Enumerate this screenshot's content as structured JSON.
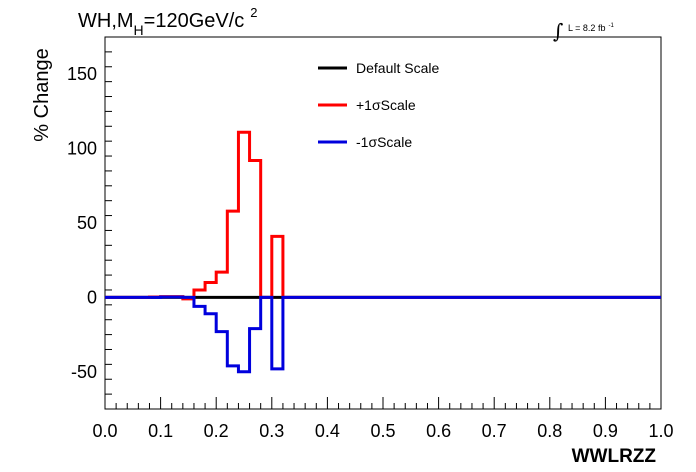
{
  "chart_data": {
    "type": "line",
    "style": "step-histogram",
    "title": {
      "prefix": "WH,M",
      "subscript": "H",
      "suffix": "=120GeV/c",
      "superscript": "2"
    },
    "luminosity": {
      "text": "L = 8.2 fb",
      "superscript": "-1"
    },
    "xlabel": "WWLRZZ",
    "ylabel": "% Change",
    "xlim": [
      0.0,
      1.0
    ],
    "ylim": [
      -75,
      175
    ],
    "xticks": [
      0.0,
      0.1,
      0.2,
      0.3,
      0.4,
      0.5,
      0.6,
      0.7,
      0.8,
      0.9,
      1.0
    ],
    "xtick_labels": [
      "0.0",
      "0.1",
      "0.2",
      "0.3",
      "0.4",
      "0.5",
      "0.6",
      "0.7",
      "0.8",
      "0.9",
      "1.0"
    ],
    "yticks": [
      -50,
      0,
      50,
      100,
      150
    ],
    "ytick_labels": [
      "-50",
      "0",
      "50",
      "100",
      "150"
    ],
    "bin_edges": [
      0.0,
      0.02,
      0.04,
      0.06,
      0.08,
      0.1,
      0.12,
      0.14,
      0.16,
      0.18,
      0.2,
      0.22,
      0.24,
      0.26,
      0.28,
      0.3,
      0.32,
      0.34,
      0.36,
      0.38,
      0.4,
      0.42,
      0.44,
      0.46,
      0.48,
      0.5,
      0.52,
      0.54,
      0.56,
      0.58,
      0.6,
      0.62,
      0.64,
      0.66,
      0.68,
      0.7,
      0.72,
      0.74,
      0.76,
      0.78,
      0.8,
      0.82,
      0.84,
      0.86,
      0.88,
      0.9,
      0.92,
      0.94,
      0.96,
      0.98,
      1.0
    ],
    "series": [
      {
        "name": "Default Scale",
        "color": "#000000",
        "values": [
          0,
          0,
          0,
          0,
          0,
          0,
          0,
          0,
          0,
          0,
          0,
          0,
          0,
          0,
          0,
          0,
          0,
          0,
          0,
          0,
          0,
          0,
          0,
          0,
          0,
          0,
          0,
          0,
          0,
          0,
          0,
          0,
          0,
          0,
          0,
          0,
          0,
          0,
          0,
          0,
          0,
          0,
          0,
          0,
          0,
          0,
          0,
          0,
          0,
          0
        ]
      },
      {
        "name": "+1σScale",
        "color": "#ff0000",
        "values": [
          0,
          0,
          0,
          0,
          0.3,
          0.5,
          0.5,
          -1,
          5,
          10,
          17,
          58,
          111,
          92,
          0,
          41,
          0,
          0,
          0,
          0,
          0,
          0,
          0,
          0,
          0,
          0,
          0,
          0,
          0,
          0,
          0,
          0,
          0,
          0,
          0,
          0,
          0,
          0,
          0,
          0,
          0,
          0,
          0,
          0,
          0,
          0,
          0,
          0,
          0,
          0
        ]
      },
      {
        "name": "-1σScale",
        "color": "#0000dd",
        "values": [
          0,
          0,
          0,
          0,
          0,
          0.3,
          0.3,
          0,
          -6,
          -11,
          -23,
          -46,
          -50,
          -21,
          0,
          -48,
          0,
          0,
          0,
          0,
          0,
          0,
          0,
          0,
          0,
          0,
          0,
          0,
          0,
          0,
          0,
          0,
          0,
          0,
          0,
          0,
          0,
          0,
          0,
          0,
          0,
          0,
          0,
          0,
          0,
          0,
          0,
          0,
          0,
          0
        ]
      }
    ],
    "legend": {
      "position": "top-center",
      "entries": [
        "Default Scale",
        "+1σScale",
        "-1σScale"
      ]
    },
    "grid": false
  }
}
